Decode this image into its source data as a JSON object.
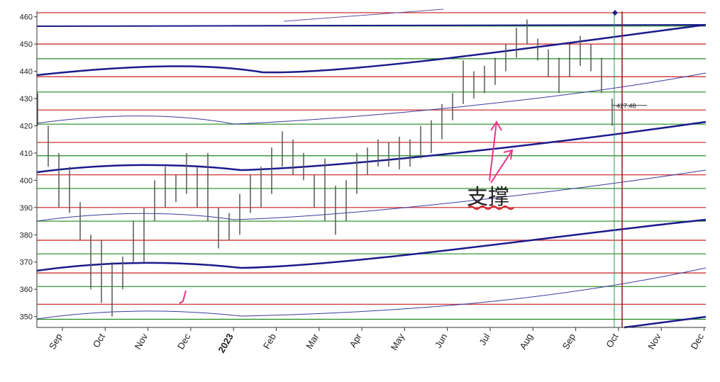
{
  "chart_data": {
    "type": "range-bar",
    "ylim": [
      346,
      462
    ],
    "yticks": [
      350,
      360,
      370,
      380,
      390,
      400,
      410,
      420,
      430,
      440,
      450,
      460
    ],
    "xticks": [
      "Sep",
      "Oct",
      "Nov",
      "Dec",
      "2023",
      "Feb",
      "Mar",
      "Apr",
      "May",
      "Jun",
      "Jul",
      "Aug",
      "Sep",
      "Oct",
      "Nov",
      "Dec"
    ],
    "emphasized_tick": "2023",
    "emphasis_color": "#b00000",
    "bar_color": "#555555",
    "high": [
      432,
      420,
      410,
      405,
      392,
      380,
      378,
      370,
      372,
      385,
      390,
      400,
      405,
      402,
      410,
      405,
      410,
      390,
      388,
      395,
      402,
      405,
      412,
      418,
      415,
      410,
      402,
      408,
      398,
      400,
      410,
      412,
      415,
      414,
      416,
      415,
      420,
      422,
      428,
      432,
      444,
      440,
      442,
      445,
      450,
      456,
      459,
      452,
      448,
      445,
      450,
      453,
      450,
      445,
      430
    ],
    "low": [
      420,
      405,
      390,
      388,
      378,
      360,
      355,
      350,
      360,
      370,
      370,
      385,
      390,
      392,
      395,
      390,
      385,
      375,
      378,
      380,
      388,
      390,
      395,
      405,
      402,
      400,
      390,
      385,
      380,
      385,
      395,
      402,
      405,
      405,
      404,
      405,
      408,
      410,
      415,
      422,
      428,
      430,
      432,
      435,
      440,
      445,
      450,
      444,
      438,
      432,
      438,
      442,
      440,
      432,
      420
    ],
    "red_levels": [
      461.5,
      450,
      438,
      425.8,
      413.9,
      402,
      390,
      378,
      366,
      354.5
    ],
    "green_levels": [
      456.6,
      444.6,
      432.4,
      420.6,
      409,
      397,
      385,
      373,
      361,
      349
    ],
    "last_price": {
      "value": 427.48,
      "label": "427.48"
    },
    "annotation": "支撑"
  }
}
